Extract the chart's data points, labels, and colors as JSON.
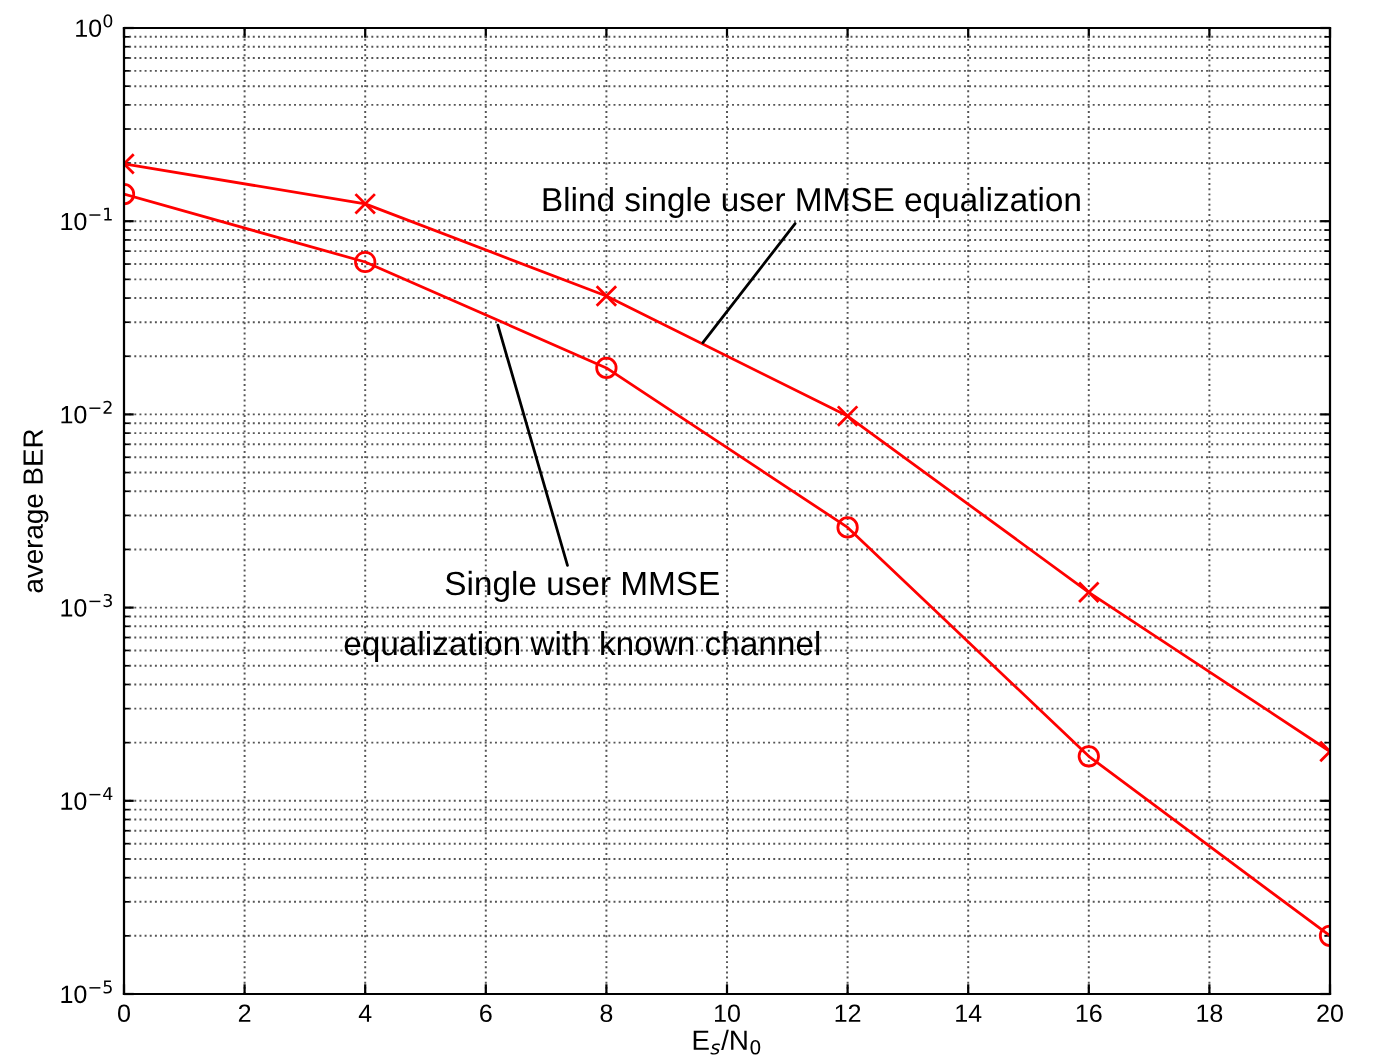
{
  "chart_data": {
    "type": "line",
    "xlabel": "E$_{s}$/N$_{0}$",
    "ylabel": "average BER",
    "log": "y",
    "grid": true,
    "x": [
      0,
      4,
      8,
      12,
      16,
      20
    ],
    "series": [
      {
        "color": "#ff0000",
        "marker": "cross",
        "values": [
          0.198,
          0.123,
          0.041,
          0.0098,
          0.0012,
          0.00018
        ]
      },
      {
        "color": "#ff0000",
        "marker": "circle",
        "values": [
          0.138,
          0.0615,
          0.0174,
          0.0026,
          0.00017,
          2e-05
        ]
      }
    ],
    "xlim": [
      0,
      20
    ],
    "xticks": [
      0,
      2,
      4,
      6,
      8,
      10,
      12,
      14,
      16,
      18,
      20
    ],
    "ylim": [
      1e-05,
      1
    ],
    "yticks": [
      {
        "value": 1e-05,
        "label": "10$^{−5}$"
      },
      {
        "value": 0.0001,
        "label": "10$^{−4}$"
      },
      {
        "value": 0.001,
        "label": "10$^{−3}$"
      },
      {
        "value": 0.01,
        "label": "10$^{−2}$"
      },
      {
        "value": 0.1,
        "label": "10$^{−1}$"
      },
      {
        "value": 1,
        "label": "10$^{0}$"
      }
    ],
    "annotations": [
      {
        "text": "Blind single user MMSE equalization",
        "x": 9.6,
        "y": 0.0235
      },
      {
        "text": "Single user MMSE\nequalization with known channel",
        "x": 6.2,
        "y": 0.029
      }
    ]
  }
}
